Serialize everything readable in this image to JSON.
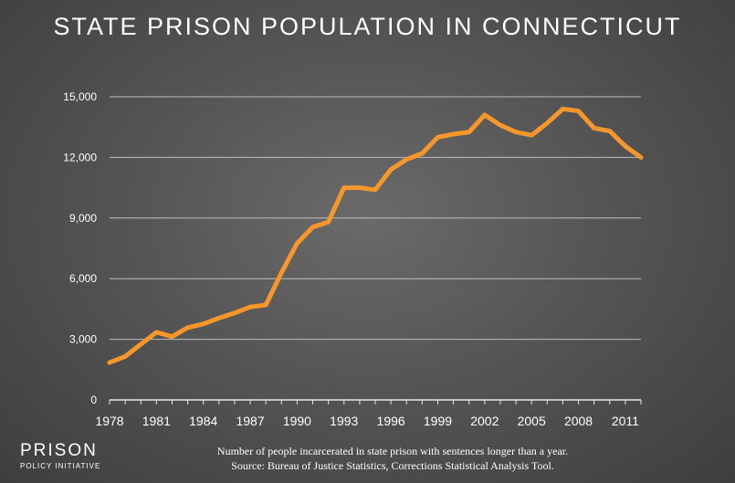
{
  "chart_data": {
    "type": "line",
    "title": "STATE PRISON POPULATION IN CONNECTICUT",
    "xlabel": "",
    "ylabel": "",
    "xlim": [
      1978,
      2012
    ],
    "ylim": [
      0,
      15000
    ],
    "grid": true,
    "line_color": "#f7962b",
    "x_ticks": [
      1978,
      1981,
      1984,
      1987,
      1990,
      1993,
      1996,
      1999,
      2002,
      2005,
      2008,
      2011
    ],
    "y_ticks": [
      0,
      3000,
      6000,
      9000,
      12000,
      15000
    ],
    "y_tick_labels": [
      "0",
      "3,000",
      "6,000",
      "9,000",
      "12,000",
      "15,000"
    ],
    "series": [
      {
        "x": [
          1978,
          1979,
          1980,
          1981,
          1982,
          1983,
          1984,
          1985,
          1986,
          1987,
          1988,
          1989,
          1990,
          1991,
          1992,
          1993,
          1994,
          1995,
          1996,
          1997,
          1998,
          1999,
          2000,
          2001,
          2002,
          2003,
          2004,
          2005,
          2006,
          2007,
          2008,
          2009,
          2010,
          2011,
          2012
        ],
        "y": [
          1850,
          2150,
          2750,
          3350,
          3130,
          3580,
          3760,
          4050,
          4300,
          4600,
          4700,
          6300,
          7750,
          8550,
          8800,
          10500,
          10500,
          10400,
          11400,
          11900,
          12200,
          13000,
          13150,
          13250,
          14100,
          13600,
          13250,
          13100,
          13700,
          14400,
          14300,
          13450,
          13300,
          12550,
          12000
        ]
      }
    ]
  },
  "caption": {
    "line1": "Number of people incarcerated in state prison with sentences longer than a year.",
    "line2": "Source: Bureau of Justice Statistics, Corrections Statistical Analysis Tool."
  },
  "logo": {
    "main": "PRISON",
    "sub": "POLICY INITIATIVE"
  }
}
